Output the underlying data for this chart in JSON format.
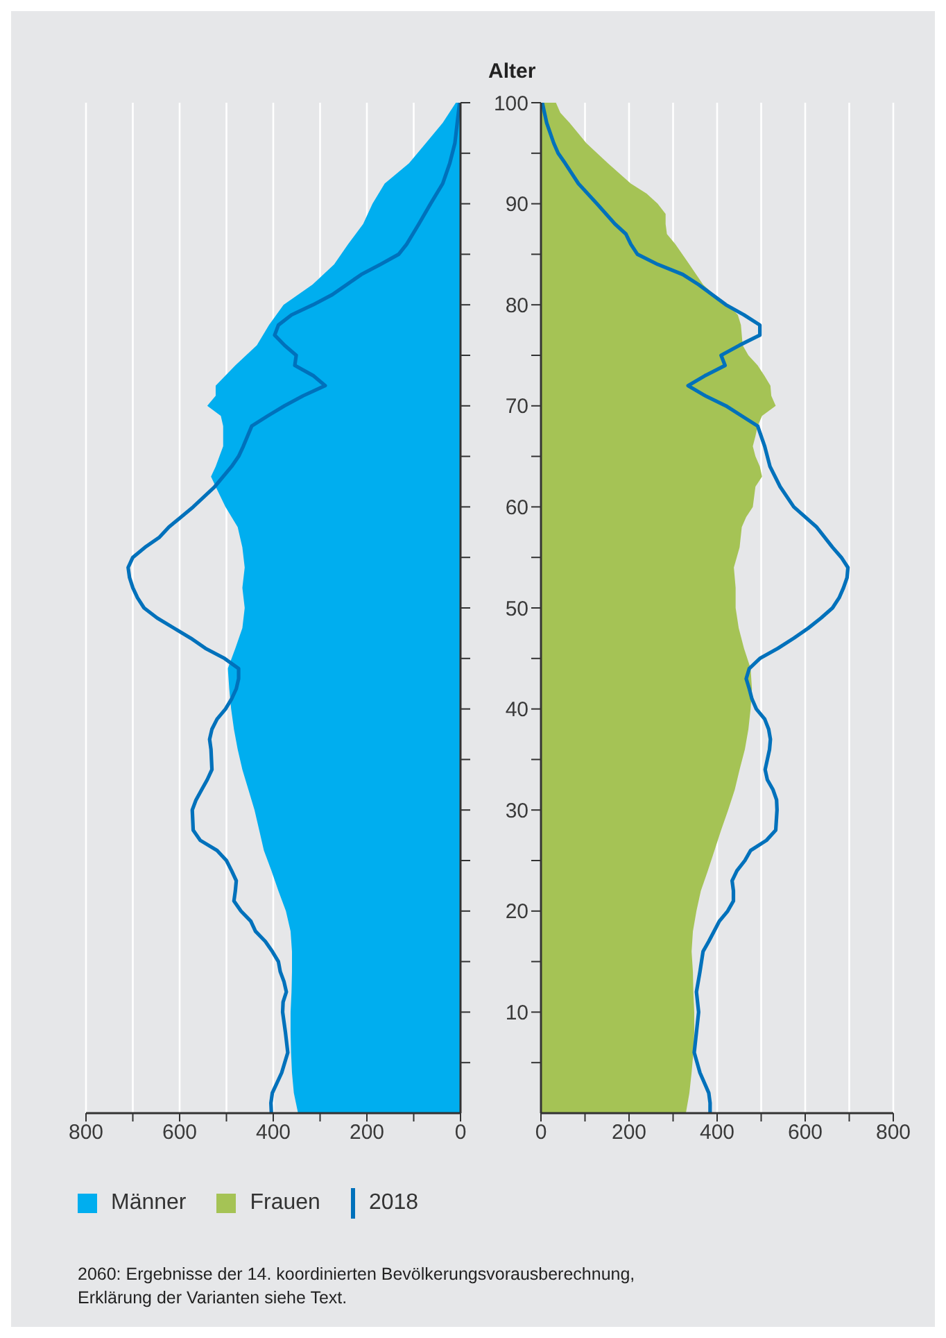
{
  "chart_data": [
    {
      "type": "area",
      "orientation": "horizontal",
      "xlim": [
        800,
        0
      ],
      "xticks": [
        800,
        {
          "value": 700,
          "label": null
        },
        600,
        {
          "value": 500,
          "label": null
        },
        400,
        {
          "value": 300,
          "label": null
        },
        200,
        {
          "value": 100,
          "label": null
        },
        0
      ],
      "ylim": [
        0,
        100
      ],
      "yticks": [
        {
          "value": 5,
          "label": null
        },
        {
          "value": 10,
          "label": null
        },
        {
          "value": 15,
          "label": null
        },
        {
          "value": 20,
          "label": null
        },
        {
          "value": 25,
          "label": null
        },
        {
          "value": 30,
          "label": null
        },
        {
          "value": 35,
          "label": null
        },
        {
          "value": 40,
          "label": null
        },
        {
          "value": 45,
          "label": null
        },
        {
          "value": 50,
          "label": null
        },
        {
          "value": 55,
          "label": null
        },
        {
          "value": 60,
          "label": null
        },
        {
          "value": 65,
          "label": null
        },
        {
          "value": 70,
          "label": null
        },
        {
          "value": 75,
          "label": null
        },
        {
          "value": 80,
          "label": null
        },
        {
          "value": 85,
          "label": null
        },
        {
          "value": 90,
          "label": null
        },
        {
          "value": 95,
          "label": null
        },
        {
          "value": 100,
          "label": null
        }
      ],
      "tick_labels": "x",
      "grid": "x",
      "legend": "bottom",
      "series": [
        {
          "name": "Männer",
          "color": "#00aeef",
          "x": [
            100,
            98,
            96,
            94,
            92,
            90,
            88,
            86,
            84,
            82,
            80,
            78,
            76,
            74,
            72,
            71,
            70,
            69,
            68,
            66,
            64,
            63,
            62,
            60,
            58,
            56,
            54,
            52,
            50,
            48,
            46,
            44,
            42,
            40,
            38,
            36,
            34,
            32,
            30,
            28,
            26,
            24,
            22,
            20,
            18,
            16,
            14,
            12,
            10,
            8,
            6,
            4,
            2,
            0
          ],
          "values": [
            10,
            38,
            74,
            110,
            162,
            188,
            208,
            240,
            270,
            316,
            378,
            409,
            435,
            481,
            523,
            523,
            541,
            512,
            507,
            507,
            523,
            533,
            523,
            502,
            476,
            466,
            461,
            466,
            461,
            466,
            481,
            497,
            494,
            490,
            484,
            476,
            466,
            453,
            440,
            430,
            420,
            404,
            389,
            373,
            363,
            360,
            360,
            361,
            363,
            363,
            362,
            360,
            356,
            347
          ]
        },
        {
          "type": "line",
          "color": "#0071bb",
          "x": [
            100,
            98,
            96,
            94,
            92,
            90,
            88,
            86,
            85,
            84,
            83,
            82,
            81,
            80,
            79,
            78,
            77,
            76,
            75,
            74,
            73,
            72,
            71,
            70,
            69,
            68,
            66,
            65,
            64,
            62,
            60,
            58,
            57,
            56,
            55,
            54,
            53,
            52,
            51,
            50,
            49,
            48,
            47,
            46,
            45,
            44,
            43,
            42,
            41,
            40,
            39,
            38,
            37,
            36,
            34,
            33,
            32,
            31,
            30,
            28,
            27,
            26,
            25,
            24,
            23,
            22,
            21,
            20,
            19,
            18,
            17,
            16,
            15,
            14,
            13,
            12,
            11,
            10,
            8,
            6,
            4,
            2,
            1,
            0
          ],
          "values": [
            2,
            7,
            12,
            23,
            38,
            64,
            89,
            115,
            132,
            171,
            212,
            243,
            274,
            315,
            361,
            389,
            397,
            376,
            351,
            354,
            315,
            289,
            336,
            376,
            412,
            446,
            464,
            474,
            489,
            525,
            571,
            623,
            643,
            674,
            700,
            710,
            707,
            700,
            690,
            676,
            648,
            612,
            576,
            545,
            504,
            474,
            474,
            479,
            489,
            502,
            520,
            531,
            536,
            533,
            531,
            541,
            553,
            565,
            573,
            571,
            556,
            520,
            500,
            489,
            479,
            481,
            484,
            469,
            448,
            438,
            417,
            402,
            389,
            385,
            377,
            372,
            379,
            380,
            374,
            369,
            382,
            402,
            405,
            404
          ]
        }
      ],
      "annotations": [
        "2060: Ergebnisse der 14. koordinierten Bevölkerungsvorausberechnung, Erklärung der Varianten siehe Text."
      ]
    },
    {
      "type": "area",
      "orientation": "horizontal",
      "ylabel": "Alter",
      "xlim": [
        0,
        800
      ],
      "xticks": [
        0,
        {
          "value": 100,
          "label": null
        },
        200,
        {
          "value": 300,
          "label": null
        },
        400,
        {
          "value": 500,
          "label": null
        },
        600,
        {
          "value": 700,
          "label": null
        },
        800
      ],
      "ylim": [
        0,
        100
      ],
      "yticks": [
        {
          "value": 5,
          "label": null
        },
        10,
        {
          "value": 15,
          "label": null
        },
        20,
        {
          "value": 25,
          "label": null
        },
        30,
        {
          "value": 35,
          "label": null
        },
        40,
        {
          "value": 45,
          "label": null
        },
        50,
        {
          "value": 55,
          "label": null
        },
        60,
        {
          "value": 65,
          "label": null
        },
        70,
        {
          "value": 75,
          "label": null
        },
        80,
        {
          "value": 85,
          "label": null
        },
        90,
        {
          "value": 95,
          "label": null
        },
        100
      ],
      "grid": "x",
      "legend": "bottom",
      "series": [
        {
          "name": "Frauen",
          "color": "#a5c355",
          "x": [
            100,
            99,
            98,
            96,
            94,
            92,
            91,
            90,
            89,
            88,
            87,
            86,
            84,
            82,
            81,
            80,
            79,
            78,
            76,
            75,
            74,
            73,
            72,
            71,
            70,
            69,
            68,
            67,
            66,
            65,
            64,
            63,
            62,
            60,
            59,
            58,
            56,
            54,
            52,
            50,
            48,
            46,
            44,
            42,
            40,
            38,
            36,
            34,
            32,
            30,
            28,
            26,
            24,
            22,
            20,
            18,
            16,
            14,
            12,
            10,
            8,
            6,
            4,
            2,
            0
          ],
          "values": [
            34,
            44,
            65,
            103,
            152,
            204,
            240,
            265,
            283,
            283,
            286,
            305,
            337,
            368,
            394,
            425,
            447,
            454,
            458,
            471,
            492,
            507,
            521,
            523,
            533,
            502,
            492,
            487,
            481,
            487,
            497,
            502,
            487,
            481,
            466,
            456,
            451,
            438,
            442,
            442,
            449,
            461,
            476,
            479,
            476,
            471,
            463,
            451,
            440,
            425,
            409,
            394,
            379,
            363,
            353,
            345,
            342,
            345,
            346,
            348,
            348,
            346,
            342,
            337,
            329
          ]
        },
        {
          "name": "2018",
          "type": "line",
          "color": "#0071bb",
          "x": [
            100,
            98,
            96,
            95,
            94,
            92,
            90,
            88,
            87,
            86,
            85,
            84,
            83,
            82,
            81,
            80,
            79,
            78,
            77,
            76,
            75,
            74,
            73,
            72,
            71,
            70,
            69,
            68,
            66,
            64,
            62,
            60,
            58,
            56,
            55,
            54,
            53,
            52,
            51,
            50,
            49,
            48,
            47,
            46,
            45,
            44,
            43,
            42,
            41,
            40,
            39,
            38,
            37,
            36,
            34,
            33,
            32,
            31,
            30,
            28,
            27,
            26,
            25,
            24,
            23,
            22,
            21,
            20,
            19,
            18,
            17,
            16,
            14,
            12,
            10,
            8,
            6,
            4,
            2,
            1,
            0
          ],
          "values": [
            3,
            13,
            29,
            39,
            55,
            85,
            127,
            168,
            193,
            204,
            219,
            265,
            322,
            358,
            389,
            420,
            461,
            497,
            497,
            451,
            409,
            418,
            373,
            334,
            373,
            420,
            456,
            492,
            508,
            520,
            543,
            574,
            626,
            662,
            682,
            697,
            695,
            687,
            677,
            662,
            636,
            607,
            574,
            538,
            497,
            473,
            466,
            473,
            479,
            489,
            508,
            517,
            521,
            519,
            509,
            514,
            527,
            535,
            536,
            533,
            512,
            476,
            463,
            445,
            434,
            437,
            437,
            424,
            405,
            393,
            381,
            368,
            361,
            353,
            358,
            353,
            348,
            361,
            381,
            384,
            384
          ]
        }
      ]
    }
  ]
}
